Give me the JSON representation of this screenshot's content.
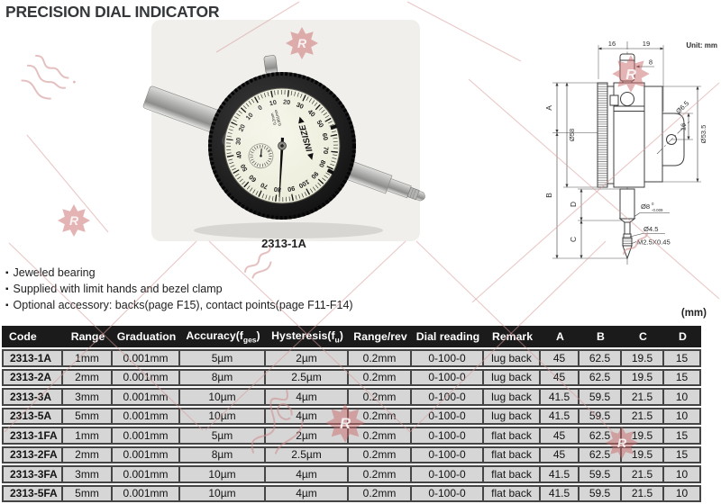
{
  "header": {
    "title": "PRECISION DIAL INDICATOR"
  },
  "photo": {
    "caption": "2313-1A",
    "brand": "INSIZE",
    "face_line1": "0.2mm",
    "face_line2": "0.001mm",
    "dial_numbers": [
      0,
      10,
      20,
      30,
      40,
      50,
      60,
      70,
      80,
      90,
      100,
      90,
      80,
      70,
      60,
      50,
      40,
      30,
      20,
      10
    ]
  },
  "features": [
    "Jeweled bearing",
    "Supplied with limit hands and bezel clamp",
    "Optional accessory: backs(page F15), contact points(page F11-F14)"
  ],
  "drawing": {
    "unit_note": "Unit: mm",
    "dims": {
      "width_left": "16",
      "width_right": "19",
      "knob_width": "8",
      "bezel_diameter": "Ø58",
      "lug_hole_diameter": "Ø6.5",
      "lug_hole_offset": "16",
      "body_diameter": "Ø53.5",
      "dim_a": "A",
      "dim_b": "B",
      "dim_c": "C",
      "dim_d": "D",
      "stem_diameter": "Ø8",
      "stem_tol_upper": "0",
      "stem_tol_lower": "-0.009",
      "contact_diameter": "Ø4.5",
      "thread": "M2.5X0.45"
    }
  },
  "table": {
    "unit_label": "(mm)",
    "headers": [
      {
        "text": "Code",
        "align": "left"
      },
      {
        "text": "Range"
      },
      {
        "text": "Graduation"
      },
      {
        "pre": "Accuracy(f",
        "sub": "ges",
        "post": ")"
      },
      {
        "pre": "Hysteresis(f",
        "sub": "u",
        "post": ")"
      },
      {
        "text": "Range/rev"
      },
      {
        "text": "Dial reading"
      },
      {
        "text": "Remark"
      },
      {
        "text": "A"
      },
      {
        "text": "B"
      },
      {
        "text": "C"
      },
      {
        "text": "D"
      }
    ],
    "rows": [
      [
        "2313-1A",
        "1mm",
        "0.001mm",
        "5µm",
        "2µm",
        "0.2mm",
        "0-100-0",
        "lug back",
        "45",
        "62.5",
        "19.5",
        "15"
      ],
      [
        "2313-2A",
        "2mm",
        "0.001mm",
        "8µm",
        "2.5µm",
        "0.2mm",
        "0-100-0",
        "lug back",
        "45",
        "62.5",
        "19.5",
        "15"
      ],
      [
        "2313-3A",
        "3mm",
        "0.001mm",
        "10µm",
        "4µm",
        "0.2mm",
        "0-100-0",
        "lug back",
        "41.5",
        "59.5",
        "21.5",
        "10"
      ],
      [
        "2313-5A",
        "5mm",
        "0.001mm",
        "10µm",
        "4µm",
        "0.2mm",
        "0-100-0",
        "lug back",
        "41.5",
        "59.5",
        "21.5",
        "10"
      ],
      [
        "2313-1FA",
        "1mm",
        "0.001mm",
        "5µm",
        "2µm",
        "0.2mm",
        "0-100-0",
        "flat back",
        "45",
        "62.5",
        "19.5",
        "15"
      ],
      [
        "2313-2FA",
        "2mm",
        "0.001mm",
        "8µm",
        "2.5µm",
        "0.2mm",
        "0-100-0",
        "flat back",
        "45",
        "62.5",
        "19.5",
        "15"
      ],
      [
        "2313-3FA",
        "3mm",
        "0.001mm",
        "10µm",
        "4µm",
        "0.2mm",
        "0-100-0",
        "flat back",
        "41.5",
        "59.5",
        "21.5",
        "10"
      ],
      [
        "2313-5FA",
        "5mm",
        "0.001mm",
        "10µm",
        "4µm",
        "0.2mm",
        "0-100-0",
        "flat back",
        "41.5",
        "59.5",
        "21.5",
        "10"
      ]
    ]
  },
  "watermark": {
    "stamp_letter": "R"
  },
  "colors": {
    "header_bg": "#1b1b1b",
    "row_bg": "#d6d6d6",
    "border": "#454545",
    "watermark_pink": "#c96a6a",
    "title": "#34383b"
  }
}
